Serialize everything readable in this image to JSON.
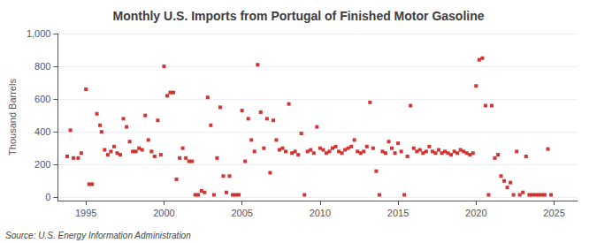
{
  "chart_data": {
    "type": "scatter",
    "title": "Monthly U.S. Imports from Portugal of Finished Motor Gasoline",
    "ylabel": "Thousand Barrels",
    "annotations": [
      "Source: U.S. Energy Information Administration"
    ],
    "xlim": [
      1993.2,
      2026.5
    ],
    "ylim": [
      -20,
      1000
    ],
    "xticks": [
      1995,
      2000,
      2005,
      2010,
      2015,
      2020,
      2025
    ],
    "yticks": [
      0,
      200,
      400,
      600,
      800,
      {
        "value": 1000,
        "label": "1,000"
      }
    ],
    "grid": true,
    "color": "#cc0000",
    "marker": "square",
    "x": [
      1993.8,
      1994.0,
      1994.2,
      1994.5,
      1994.7,
      1995.0,
      1995.2,
      1995.4,
      1995.7,
      1995.9,
      1996.0,
      1996.2,
      1996.4,
      1996.6,
      1996.8,
      1997.0,
      1997.2,
      1997.4,
      1997.6,
      1997.8,
      1998.0,
      1998.2,
      1998.4,
      1998.6,
      1998.8,
      1999.0,
      1999.2,
      1999.4,
      1999.6,
      1999.8,
      2000.0,
      2000.2,
      2000.4,
      2000.6,
      2000.8,
      2001.0,
      2001.2,
      2001.4,
      2001.6,
      2001.8,
      2002.0,
      2002.2,
      2002.4,
      2002.6,
      2002.8,
      2003.0,
      2003.2,
      2003.4,
      2003.6,
      2003.8,
      2004.0,
      2004.2,
      2004.4,
      2004.6,
      2004.8,
      2005.0,
      2005.2,
      2005.4,
      2005.6,
      2005.8,
      2006.0,
      2006.2,
      2006.4,
      2006.6,
      2006.8,
      2007.0,
      2007.2,
      2007.4,
      2007.6,
      2007.8,
      2008.0,
      2008.2,
      2008.4,
      2008.6,
      2008.8,
      2009.0,
      2009.2,
      2009.4,
      2009.6,
      2009.8,
      2010.0,
      2010.2,
      2010.4,
      2010.6,
      2010.8,
      2011.0,
      2011.2,
      2011.4,
      2011.6,
      2011.8,
      2012.0,
      2012.2,
      2012.4,
      2012.6,
      2012.8,
      2013.0,
      2013.2,
      2013.4,
      2013.6,
      2013.8,
      2014.0,
      2014.2,
      2014.4,
      2014.6,
      2014.8,
      2015.0,
      2015.2,
      2015.4,
      2015.6,
      2015.8,
      2016.0,
      2016.2,
      2016.4,
      2016.6,
      2016.8,
      2017.0,
      2017.2,
      2017.4,
      2017.6,
      2017.8,
      2018.0,
      2018.2,
      2018.4,
      2018.6,
      2018.8,
      2019.0,
      2019.2,
      2019.4,
      2019.6,
      2019.8,
      2020.0,
      2020.2,
      2020.4,
      2020.6,
      2020.8,
      2021.0,
      2021.2,
      2021.4,
      2021.6,
      2021.8,
      2022.0,
      2022.2,
      2022.4,
      2022.6,
      2022.8,
      2023.0,
      2023.2,
      2023.4,
      2023.6,
      2023.8,
      2024.0,
      2024.2,
      2024.4,
      2024.6,
      2024.8
    ],
    "values": [
      250,
      410,
      240,
      240,
      270,
      660,
      80,
      80,
      510,
      440,
      400,
      290,
      260,
      280,
      310,
      270,
      260,
      480,
      430,
      340,
      280,
      280,
      300,
      290,
      500,
      350,
      280,
      250,
      470,
      260,
      800,
      620,
      640,
      640,
      110,
      240,
      300,
      240,
      220,
      220,
      15,
      15,
      40,
      30,
      610,
      440,
      15,
      240,
      550,
      130,
      30,
      130,
      15,
      15,
      15,
      530,
      220,
      480,
      350,
      280,
      810,
      520,
      300,
      480,
      150,
      470,
      350,
      290,
      300,
      280,
      570,
      270,
      280,
      260,
      390,
      15,
      280,
      290,
      270,
      430,
      300,
      290,
      270,
      280,
      300,
      310,
      280,
      270,
      290,
      300,
      310,
      350,
      280,
      270,
      280,
      310,
      580,
      300,
      160,
      15,
      280,
      270,
      340,
      300,
      270,
      330,
      280,
      15,
      250,
      560,
      300,
      280,
      290,
      270,
      280,
      310,
      280,
      270,
      290,
      270,
      280,
      270,
      260,
      280,
      270,
      290,
      280,
      270,
      260,
      270,
      680,
      840,
      850,
      560,
      15,
      560,
      240,
      260,
      130,
      100,
      60,
      90,
      15,
      280,
      15,
      30,
      250,
      15,
      15,
      15,
      15,
      15,
      15,
      295,
      15
    ]
  }
}
